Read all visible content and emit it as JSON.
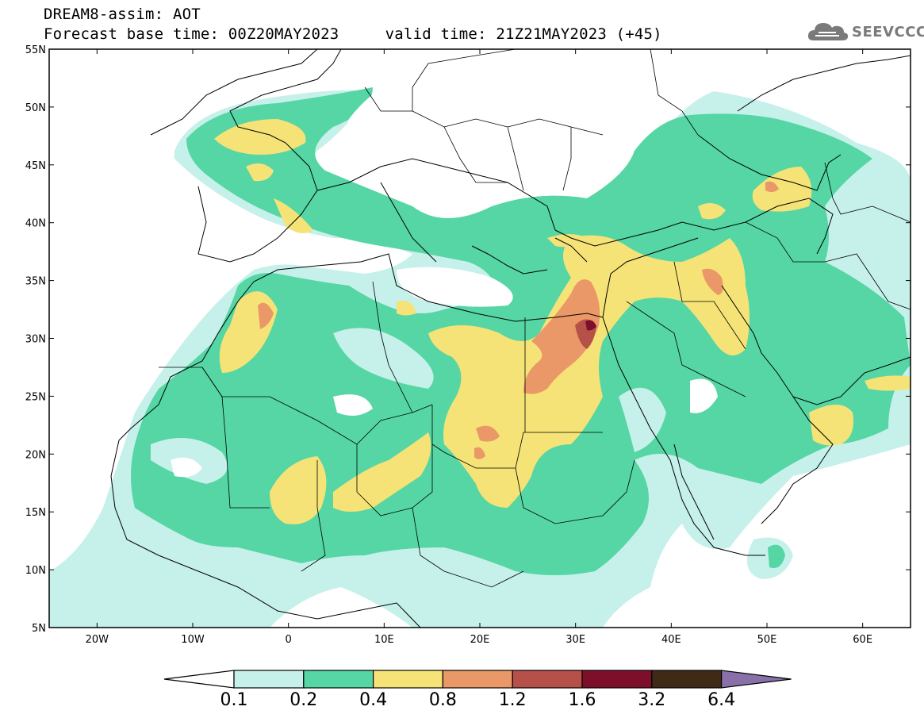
{
  "header": {
    "model_title": "DREAM8-assim: AOT",
    "base_time": "Forecast base time: 00Z20MAY2023",
    "valid_time": "valid time: 21Z21MAY2023 (+45)"
  },
  "logo": {
    "text": "SEEVCCC",
    "icon": "cloud-icon"
  },
  "map": {
    "lat_range": [
      5,
      55
    ],
    "lon_range": [
      -25,
      65
    ],
    "lat_ticks": [
      {
        "value": 55,
        "label": "55N"
      },
      {
        "value": 50,
        "label": "50N"
      },
      {
        "value": 45,
        "label": "45N"
      },
      {
        "value": 40,
        "label": "40N"
      },
      {
        "value": 35,
        "label": "35N"
      },
      {
        "value": 30,
        "label": "30N"
      },
      {
        "value": 25,
        "label": "25N"
      },
      {
        "value": 20,
        "label": "20N"
      },
      {
        "value": 15,
        "label": "15N"
      },
      {
        "value": 10,
        "label": "10N"
      },
      {
        "value": 5,
        "label": "5N"
      }
    ],
    "lon_ticks": [
      {
        "value": -20,
        "label": "20W"
      },
      {
        "value": -10,
        "label": "10W"
      },
      {
        "value": 0,
        "label": "0"
      },
      {
        "value": 10,
        "label": "10E"
      },
      {
        "value": 20,
        "label": "20E"
      },
      {
        "value": 30,
        "label": "30E"
      },
      {
        "value": 40,
        "label": "40E"
      },
      {
        "value": 50,
        "label": "50E"
      },
      {
        "value": 60,
        "label": "60E"
      }
    ]
  },
  "colorbar": {
    "bins": [
      {
        "color": "#c6f0ea"
      },
      {
        "color": "#55d6a4"
      },
      {
        "color": "#f5e377"
      },
      {
        "color": "#ea9867"
      },
      {
        "color": "#b6514a"
      },
      {
        "color": "#7d0f2b"
      },
      {
        "color": "#3f2a16"
      }
    ],
    "under_color": "#ffffff",
    "over_color": "#8a70a8",
    "labels": [
      "0.1",
      "0.2",
      "0.4",
      "0.8",
      "1.2",
      "1.6",
      "3.2",
      "6.4"
    ]
  }
}
